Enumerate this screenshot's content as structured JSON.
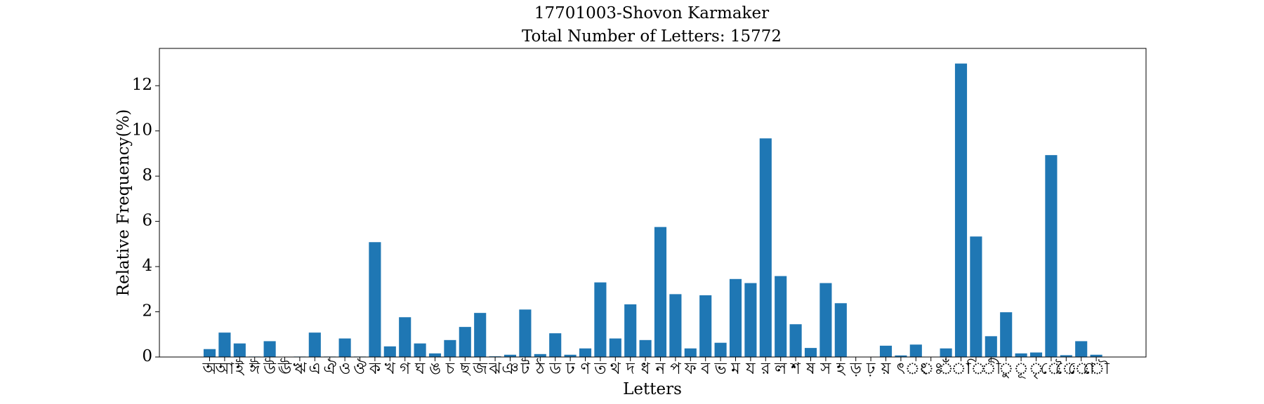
{
  "chart_data": {
    "type": "bar",
    "title": [
      "17701003-Shovon Karmaker",
      "Total Number of Letters: 15772"
    ],
    "x_label": "Letters",
    "y_label": "Relative Frequency(%)",
    "color": "#1f77b4",
    "grid": false,
    "categories": [
      "অ",
      "আ",
      "ই",
      "ঈ",
      "উ",
      "ঊ",
      "ঋ",
      "এ",
      "ঐ",
      "ও",
      "ঔ",
      "ক",
      "খ",
      "গ",
      "ঘ",
      "ঙ",
      "চ",
      "ছ",
      "জ",
      "ঝ",
      "ঞ",
      "ট",
      "ঠ",
      "ড",
      "ঢ",
      "ণ",
      "ত",
      "থ",
      "দ",
      "ধ",
      "ন",
      "প",
      "ফ",
      "ব",
      "ভ",
      "ম",
      "য",
      "র",
      "ল",
      "শ",
      "ষ",
      "স",
      "হ",
      "ড়",
      "ঢ়",
      "য়",
      "ৎ",
      "ং",
      "ঃ",
      "ঁ",
      "া",
      "ি",
      "ী",
      "ু",
      "ূ",
      "ৃ",
      "ে",
      "ৈ",
      "ো",
      "ৌ"
    ],
    "values": [
      0.35,
      1.08,
      0.6,
      0.02,
      0.7,
      0,
      0.02,
      1.08,
      0.02,
      0.82,
      0.02,
      5.08,
      0.47,
      1.76,
      0.6,
      0.16,
      0.75,
      1.33,
      1.95,
      0.03,
      0.1,
      2.1,
      0.13,
      1.05,
      0.1,
      0.38,
      3.3,
      0.82,
      2.33,
      0.75,
      5.75,
      2.78,
      0.38,
      2.73,
      0.63,
      3.45,
      3.27,
      9.67,
      3.58,
      1.45,
      0.4,
      3.27,
      2.38,
      0,
      0,
      0.5,
      0.07,
      0.55,
      0,
      0.38,
      12.98,
      5.33,
      0.92,
      1.98,
      0.16,
      0.2,
      8.93,
      0.08,
      0.7,
      0.1
    ],
    "ylim": [
      0,
      13.65
    ],
    "yticks": [
      0,
      2,
      4,
      6,
      8,
      10,
      12
    ]
  }
}
